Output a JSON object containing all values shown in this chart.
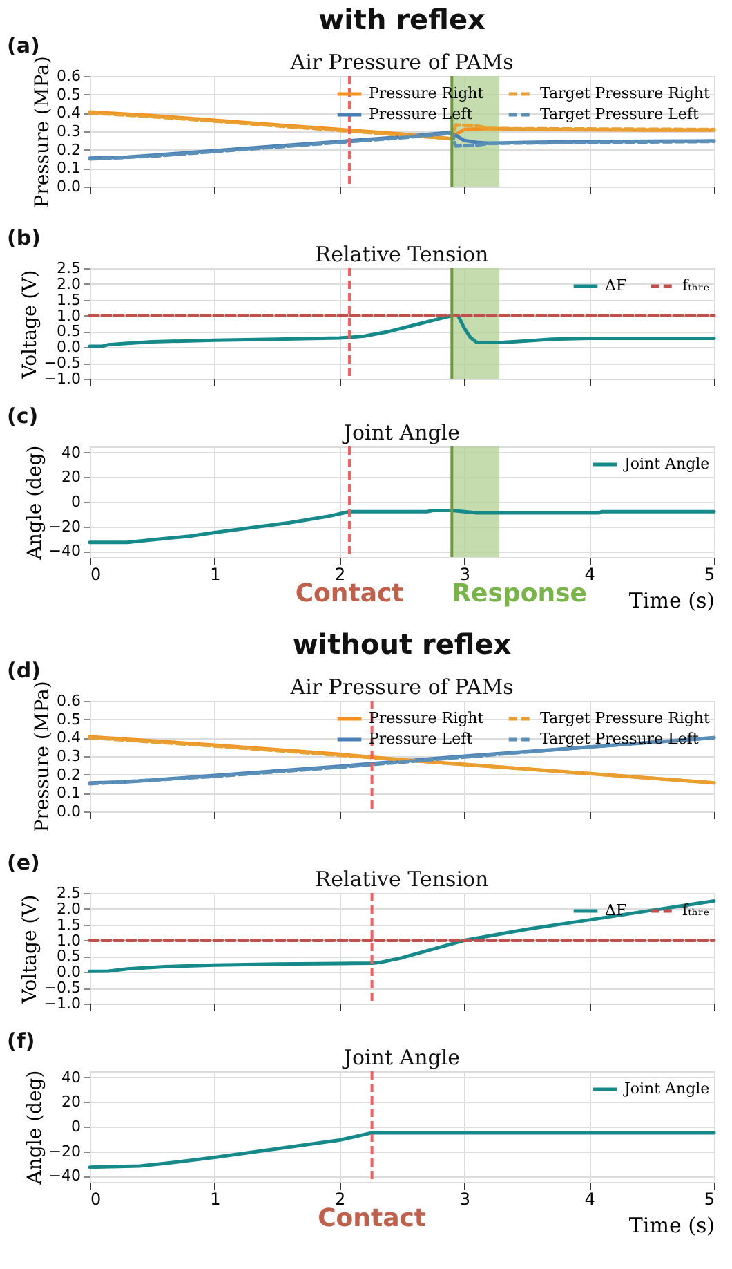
{
  "chart_data": [
    {
      "type": "line",
      "title": "Air Pressure of PAMs",
      "ylabel": "Pressure (MPa)",
      "annotations": [
        "(a)",
        "with reflex"
      ],
      "xlim": [
        0,
        5
      ],
      "xticks": [
        0,
        1,
        2,
        3,
        4,
        5
      ],
      "ylim": [
        0,
        0.6
      ],
      "yticks": [
        {
          "value": 0,
          "label": "0.0"
        },
        {
          "value": 0.1,
          "label": "0.1"
        },
        {
          "value": 0.2,
          "label": "0.2"
        },
        {
          "value": 0.3,
          "label": "0.3"
        },
        {
          "value": 0.4,
          "label": "0.4"
        },
        {
          "value": 0.5,
          "label": "0.5"
        },
        {
          "value": 0.6,
          "label": "0.6"
        }
      ],
      "tick_labels": "y",
      "grid": true,
      "legend": "top right",
      "series": [
        {
          "name": "Pressure Right",
          "color": "#f39020",
          "line_style": "solid",
          "x": [
            0,
            0.5,
            1,
            1.5,
            2,
            2.5,
            2.9,
            2.95,
            3.0,
            3.2,
            3.5,
            4,
            4.5,
            5
          ],
          "values": [
            0.405,
            0.385,
            0.36,
            0.335,
            0.31,
            0.285,
            0.26,
            0.29,
            0.31,
            0.315,
            0.31,
            0.308,
            0.307,
            0.307
          ]
        },
        {
          "name": "Pressure Left",
          "color": "#4a80b8",
          "line_style": "solid",
          "x": [
            0,
            0.3,
            0.5,
            1,
            1.5,
            2,
            2.5,
            2.9,
            2.95,
            3.0,
            3.1,
            3.2,
            3.5,
            4,
            4.5,
            5
          ],
          "values": [
            0.155,
            0.16,
            0.17,
            0.195,
            0.22,
            0.245,
            0.27,
            0.295,
            0.27,
            0.25,
            0.24,
            0.235,
            0.24,
            0.245,
            0.247,
            0.248
          ]
        },
        {
          "name": "Target Pressure Right",
          "color": "#e8a030",
          "line_style": "dashed",
          "x": [
            0,
            0.5,
            1,
            1.5,
            2,
            2.5,
            2.9,
            2.93,
            3.1,
            3.2,
            5
          ],
          "values": [
            0.4,
            0.38,
            0.355,
            0.33,
            0.305,
            0.28,
            0.26,
            0.335,
            0.33,
            0.315,
            0.31
          ]
        },
        {
          "name": "Target Pressure Left",
          "color": "#5a90b8",
          "line_style": "dashed",
          "x": [
            0,
            0.5,
            1,
            1.5,
            2,
            2.5,
            2.9,
            2.93,
            3.1,
            3.2,
            5
          ],
          "values": [
            0.15,
            0.165,
            0.19,
            0.215,
            0.24,
            0.265,
            0.29,
            0.22,
            0.225,
            0.235,
            0.245
          ]
        }
      ],
      "ref_lines": [
        {
          "axis": "x",
          "value": 2.08,
          "color": "#ff5a5a",
          "line_style": "dashed"
        },
        {
          "axis": "x",
          "value": 2.9,
          "color": "#6a9a3a",
          "line_style": "solid"
        }
      ],
      "bands": [
        {
          "axis": "x",
          "from": 2.9,
          "to": 3.28,
          "color": "#b5d39a"
        }
      ]
    },
    {
      "type": "line",
      "title": "Relative Tension",
      "ylabel": "Voltage (V)",
      "annotations": [
        "(b)"
      ],
      "xlim": [
        0,
        5
      ],
      "xticks": [
        0,
        1,
        2,
        3,
        4,
        5
      ],
      "ylim": [
        -1,
        2.5
      ],
      "yticks": [
        {
          "value": -1,
          "label": "−1.0"
        },
        {
          "value": -0.5,
          "label": "−0.5"
        },
        {
          "value": 0,
          "label": "0.0"
        },
        {
          "value": 0.5,
          "label": "0.5"
        },
        {
          "value": 1,
          "label": "1.0"
        },
        {
          "value": 1.5,
          "label": "1.5"
        },
        {
          "value": 2,
          "label": "2.0"
        },
        {
          "value": 2.5,
          "label": "2.5"
        }
      ],
      "tick_labels": "y",
      "grid": true,
      "legend": "top right",
      "series": [
        {
          "name": "ΔF",
          "color": "#168a8a",
          "line_style": "solid",
          "x": [
            0,
            0.1,
            0.15,
            0.3,
            0.5,
            0.8,
            1,
            1.5,
            2,
            2.08,
            2.2,
            2.4,
            2.6,
            2.8,
            2.9,
            2.95,
            3.0,
            3.05,
            3.1,
            3.3,
            3.5,
            3.7,
            4,
            4.5,
            5
          ],
          "values": [
            0.03,
            0.03,
            0.08,
            0.12,
            0.17,
            0.2,
            0.22,
            0.25,
            0.29,
            0.31,
            0.35,
            0.5,
            0.7,
            0.9,
            1.0,
            1.0,
            0.6,
            0.3,
            0.15,
            0.15,
            0.2,
            0.25,
            0.28,
            0.28,
            0.28
          ]
        },
        {
          "name": "fₜₕᵣₑ",
          "color": "#c0504d",
          "line_style": "dashed",
          "x": [
            0,
            5
          ],
          "values": [
            1,
            1
          ]
        }
      ],
      "ref_lines": [
        {
          "axis": "x",
          "value": 2.08,
          "color": "#ff5a5a",
          "line_style": "dashed"
        },
        {
          "axis": "x",
          "value": 2.9,
          "color": "#6a9a3a",
          "line_style": "solid"
        }
      ],
      "bands": [
        {
          "axis": "x",
          "from": 2.9,
          "to": 3.28,
          "color": "#b5d39a"
        }
      ]
    },
    {
      "type": "line",
      "title": "Joint Angle",
      "ylabel": "Angle (deg)",
      "xlabel": "Time (s)",
      "annotations": [
        "(c)",
        "Contact",
        "Response"
      ],
      "xlim": [
        0,
        5
      ],
      "xticks": [
        0,
        1,
        2,
        3,
        4,
        5
      ],
      "ylim": [
        -45,
        45
      ],
      "yticks": [
        {
          "value": -40,
          "label": "−40"
        },
        {
          "value": -20,
          "label": "−20"
        },
        0,
        20,
        40
      ],
      "grid": true,
      "legend": "top right",
      "series": [
        {
          "name": "Joint Angle",
          "color": "#168a8a",
          "line_style": "solid",
          "x": [
            0,
            0.3,
            0.5,
            0.8,
            1,
            1.3,
            1.6,
            1.9,
            2.08,
            2.5,
            2.7,
            2.75,
            2.9,
            3.0,
            3.1,
            4.08,
            4.1,
            5
          ],
          "values": [
            -33,
            -33,
            -31,
            -28,
            -25,
            -21,
            -17,
            -12,
            -8,
            -8,
            -8,
            -7,
            -7,
            -8,
            -9,
            -9,
            -8,
            -8
          ]
        }
      ],
      "ref_lines": [
        {
          "axis": "x",
          "value": 2.08,
          "color": "#ff5a5a",
          "line_style": "dashed"
        },
        {
          "axis": "x",
          "value": 2.9,
          "color": "#6a9a3a",
          "line_style": "solid"
        }
      ],
      "bands": [
        {
          "axis": "x",
          "from": 2.9,
          "to": 3.28,
          "color": "#b5d39a"
        }
      ]
    },
    {
      "type": "line",
      "title": "Air Pressure of PAMs",
      "ylabel": "Pressure (MPa)",
      "annotations": [
        "(d)",
        "without reflex"
      ],
      "xlim": [
        0,
        5
      ],
      "xticks": [
        0,
        1,
        2,
        3,
        4,
        5
      ],
      "ylim": [
        0,
        0.6
      ],
      "yticks": [
        {
          "value": 0,
          "label": "0.0"
        },
        {
          "value": 0.1,
          "label": "0.1"
        },
        {
          "value": 0.2,
          "label": "0.2"
        },
        {
          "value": 0.3,
          "label": "0.3"
        },
        {
          "value": 0.4,
          "label": "0.4"
        },
        {
          "value": 0.5,
          "label": "0.5"
        },
        {
          "value": 0.6,
          "label": "0.6"
        }
      ],
      "tick_labels": "y",
      "grid": true,
      "legend": "top right",
      "series": [
        {
          "name": "Pressure Right",
          "color": "#f39020",
          "line_style": "solid",
          "x": [
            0,
            1,
            2,
            2.5,
            3,
            4,
            5
          ],
          "values": [
            0.405,
            0.36,
            0.31,
            0.28,
            0.255,
            0.205,
            0.155
          ]
        },
        {
          "name": "Pressure Left",
          "color": "#4a80b8",
          "line_style": "solid",
          "x": [
            0,
            0.3,
            0.5,
            1,
            2,
            3,
            4,
            5
          ],
          "values": [
            0.155,
            0.16,
            0.17,
            0.195,
            0.245,
            0.3,
            0.35,
            0.4
          ]
        },
        {
          "name": "Target Pressure Right",
          "color": "#e8a030",
          "line_style": "dashed",
          "x": [
            0,
            1,
            2,
            3,
            4,
            5
          ],
          "values": [
            0.4,
            0.355,
            0.305,
            0.255,
            0.205,
            0.155
          ]
        },
        {
          "name": "Target Pressure Left",
          "color": "#5a90b8",
          "line_style": "dashed",
          "x": [
            0,
            1,
            2,
            3,
            4,
            5
          ],
          "values": [
            0.15,
            0.19,
            0.24,
            0.295,
            0.35,
            0.4
          ]
        }
      ],
      "ref_lines": [
        {
          "axis": "x",
          "value": 2.26,
          "color": "#ff5a5a",
          "line_style": "dashed"
        }
      ]
    },
    {
      "type": "line",
      "title": "Relative Tension",
      "ylabel": "Voltage (V)",
      "annotations": [
        "(e)"
      ],
      "xlim": [
        0,
        5
      ],
      "xticks": [
        0,
        1,
        2,
        3,
        4,
        5
      ],
      "ylim": [
        -1,
        2.5
      ],
      "yticks": [
        {
          "value": -1,
          "label": "−1.0"
        },
        {
          "value": -0.5,
          "label": "−0.5"
        },
        {
          "value": 0,
          "label": "0.0"
        },
        {
          "value": 0.5,
          "label": "0.5"
        },
        {
          "value": 1,
          "label": "1.0"
        },
        {
          "value": 1.5,
          "label": "1.5"
        },
        {
          "value": 2,
          "label": "2.0"
        },
        {
          "value": 2.5,
          "label": "2.5"
        }
      ],
      "tick_labels": "y",
      "grid": true,
      "legend": "top right",
      "series": [
        {
          "name": "ΔF",
          "color": "#168a8a",
          "line_style": "solid",
          "x": [
            0,
            0.15,
            0.3,
            0.6,
            1,
            1.5,
            2,
            2.26,
            2.32,
            2.5,
            3,
            3.5,
            4,
            4.5,
            5
          ],
          "values": [
            0.02,
            0.03,
            0.1,
            0.17,
            0.22,
            0.25,
            0.27,
            0.28,
            0.3,
            0.45,
            1.0,
            1.35,
            1.65,
            1.95,
            2.25
          ]
        },
        {
          "name": "fₜₕᵣₑ",
          "color": "#c0504d",
          "line_style": "dashed",
          "x": [
            0,
            5
          ],
          "values": [
            1,
            1
          ]
        }
      ],
      "ref_lines": [
        {
          "axis": "x",
          "value": 2.26,
          "color": "#ff5a5a",
          "line_style": "dashed"
        }
      ]
    },
    {
      "type": "line",
      "title": "Joint Angle",
      "ylabel": "Angle (deg)",
      "xlabel": "Time (s)",
      "annotations": [
        "(f)",
        "Contact"
      ],
      "xlim": [
        0,
        5
      ],
      "xticks": [
        0,
        1,
        2,
        3,
        4,
        5
      ],
      "ylim": [
        -45,
        45
      ],
      "yticks": [
        {
          "value": -40,
          "label": "−40"
        },
        {
          "value": -20,
          "label": "−20"
        },
        0,
        20,
        40
      ],
      "grid": true,
      "legend": "top right",
      "series": [
        {
          "name": "Joint Angle",
          "color": "#168a8a",
          "line_style": "solid",
          "x": [
            0,
            0.4,
            0.6,
            1,
            1.5,
            2,
            2.26,
            5
          ],
          "values": [
            -33,
            -32,
            -30,
            -25,
            -18,
            -11,
            -5,
            -5
          ]
        }
      ],
      "ref_lines": [
        {
          "axis": "x",
          "value": 2.26,
          "color": "#ff5a5a",
          "line_style": "dashed"
        }
      ]
    }
  ]
}
